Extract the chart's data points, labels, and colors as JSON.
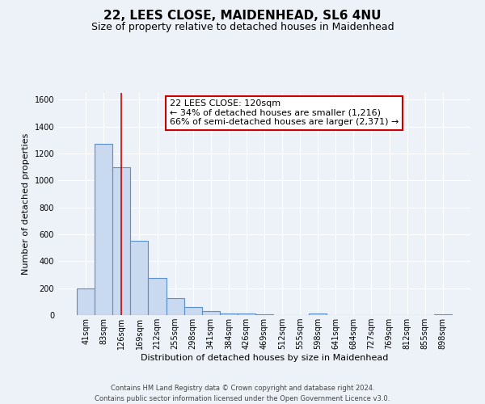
{
  "title": "22, LEES CLOSE, MAIDENHEAD, SL6 4NU",
  "subtitle": "Size of property relative to detached houses in Maidenhead",
  "xlabel": "Distribution of detached houses by size in Maidenhead",
  "ylabel": "Number of detached properties",
  "bin_labels": [
    "41sqm",
    "83sqm",
    "126sqm",
    "169sqm",
    "212sqm",
    "255sqm",
    "298sqm",
    "341sqm",
    "384sqm",
    "426sqm",
    "469sqm",
    "512sqm",
    "555sqm",
    "598sqm",
    "641sqm",
    "684sqm",
    "727sqm",
    "769sqm",
    "812sqm",
    "855sqm",
    "898sqm"
  ],
  "bar_values": [
    200,
    1270,
    1100,
    550,
    275,
    125,
    60,
    30,
    15,
    10,
    5,
    0,
    0,
    15,
    0,
    0,
    0,
    0,
    0,
    0,
    5
  ],
  "bar_color": "#c8d9f0",
  "bar_edgecolor": "#5b8fc9",
  "bar_linewidth": 0.8,
  "vline_x": 2,
  "vline_color": "#cc0000",
  "ylim": [
    0,
    1650
  ],
  "yticks": [
    0,
    200,
    400,
    600,
    800,
    1000,
    1200,
    1400,
    1600
  ],
  "annotation_line1": "22 LEES CLOSE: 120sqm",
  "annotation_line2": "← 34% of detached houses are smaller (1,216)",
  "annotation_line3": "66% of semi-detached houses are larger (2,371) →",
  "footer_line1": "Contains HM Land Registry data © Crown copyright and database right 2024.",
  "footer_line2": "Contains public sector information licensed under the Open Government Licence v3.0.",
  "bg_color": "#edf2f9",
  "plot_bg_color": "#edf2f9",
  "grid_color": "#ffffff",
  "title_fontsize": 11,
  "subtitle_fontsize": 9,
  "axis_label_fontsize": 8,
  "tick_fontsize": 7,
  "annotation_fontsize": 8,
  "footer_fontsize": 6
}
